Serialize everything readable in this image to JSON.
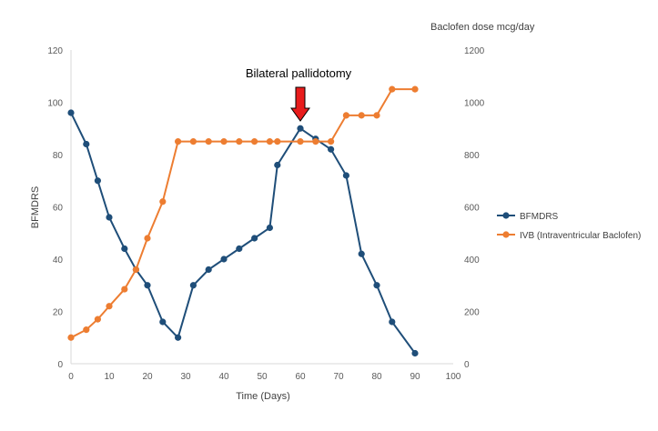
{
  "chart_data": {
    "type": "line",
    "xlabel": "Time (Days)",
    "ylabel": "BFMDRS",
    "y2label": "Baclofen dose mcg/day",
    "xlim": [
      0,
      100
    ],
    "ylim": [
      0,
      120
    ],
    "y2lim": [
      0,
      1200
    ],
    "x_ticks": [
      "0",
      "10",
      "20",
      "30",
      "40",
      "50",
      "60",
      "70",
      "80",
      "90",
      "100"
    ],
    "y_ticks": [
      "0",
      "20",
      "40",
      "60",
      "80",
      "100",
      "120"
    ],
    "y2_ticks": [
      "0",
      "200",
      "400",
      "600",
      "800",
      "1000",
      "1200"
    ],
    "grid": false,
    "legend_position": "right",
    "series": [
      {
        "name": "BFMDRS",
        "axis": "left",
        "color": "#1f4e79",
        "points": [
          [
            0,
            96
          ],
          [
            4,
            84
          ],
          [
            7,
            70
          ],
          [
            10,
            56
          ],
          [
            14,
            44
          ],
          [
            17,
            36
          ],
          [
            20,
            30
          ],
          [
            24,
            16
          ],
          [
            28,
            10
          ],
          [
            32,
            30
          ],
          [
            36,
            36
          ],
          [
            40,
            40
          ],
          [
            44,
            44
          ],
          [
            48,
            48
          ],
          [
            52,
            52
          ],
          [
            54,
            76
          ],
          [
            60,
            90
          ],
          [
            64,
            86
          ],
          [
            68,
            82
          ],
          [
            72,
            72
          ],
          [
            76,
            42
          ],
          [
            80,
            30
          ],
          [
            84,
            16
          ],
          [
            90,
            4
          ]
        ]
      },
      {
        "name": "IVB (Intraventricular Baclofen)",
        "axis": "right",
        "color": "#ed7d31",
        "points": [
          [
            0,
            100
          ],
          [
            4,
            130
          ],
          [
            7,
            170
          ],
          [
            10,
            220
          ],
          [
            14,
            285
          ],
          [
            17,
            360
          ],
          [
            20,
            480
          ],
          [
            24,
            620
          ],
          [
            28,
            850
          ],
          [
            32,
            850
          ],
          [
            36,
            850
          ],
          [
            40,
            850
          ],
          [
            44,
            850
          ],
          [
            48,
            850
          ],
          [
            52,
            850
          ],
          [
            54,
            850
          ],
          [
            60,
            850
          ],
          [
            64,
            850
          ],
          [
            68,
            850
          ],
          [
            72,
            950
          ],
          [
            76,
            950
          ],
          [
            80,
            950
          ],
          [
            84,
            1050
          ],
          [
            90,
            1050
          ]
        ]
      }
    ],
    "annotation": {
      "text": "Bilateral pallidotomy",
      "x": 60,
      "arrow_color": "#e81c1c"
    }
  }
}
